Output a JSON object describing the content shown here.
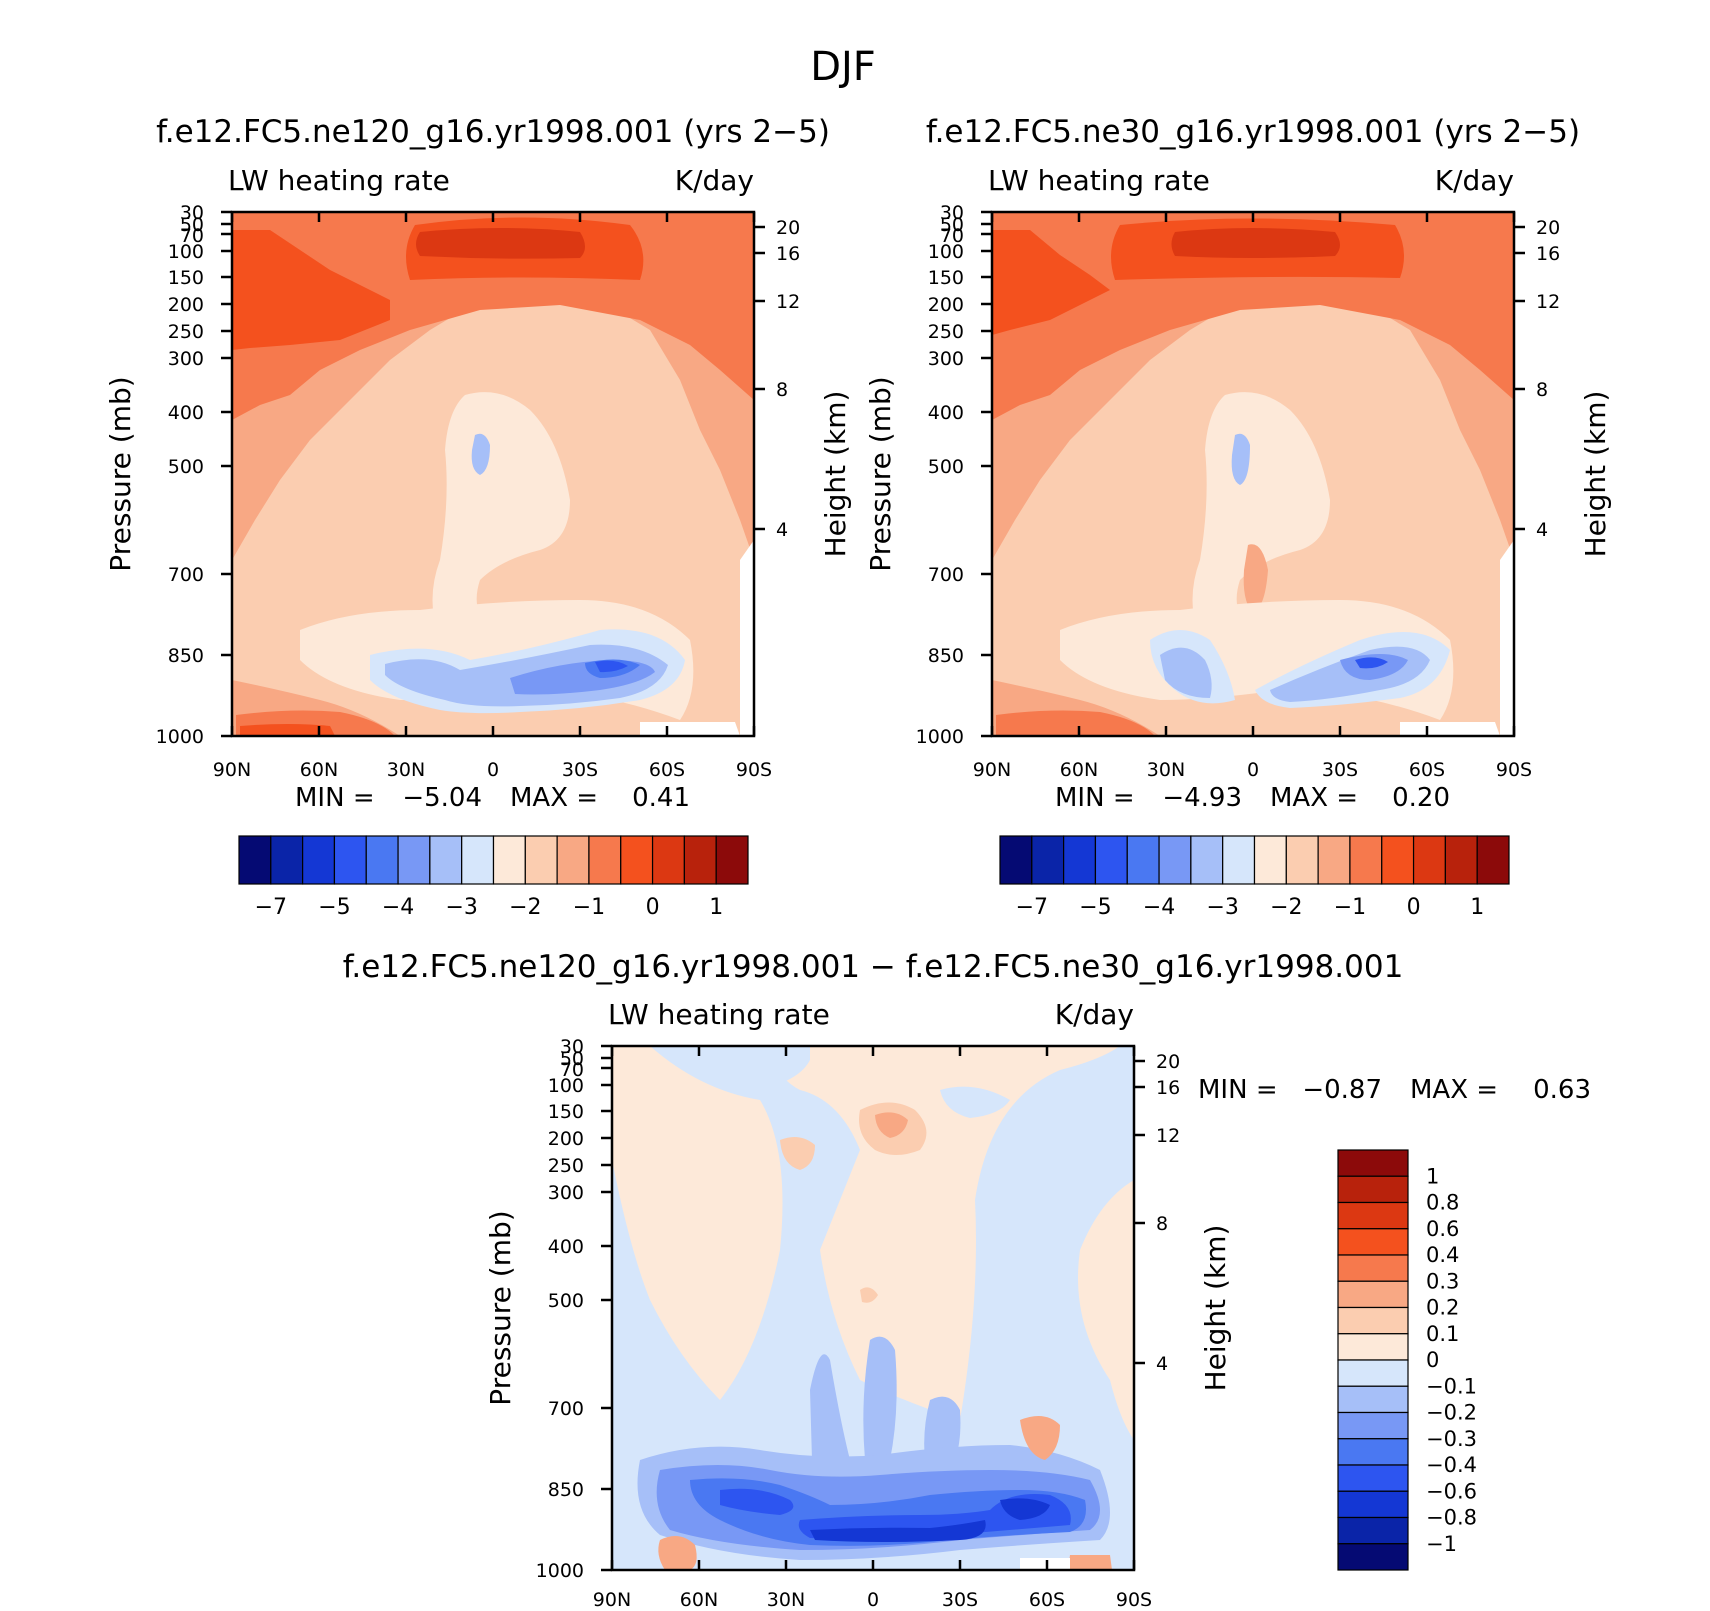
{
  "figure": {
    "title": "DJF"
  },
  "chart_data": [
    {
      "type": "heatmap",
      "title": "f.e12.FC5.ne120_g16.yr1998.001 (yrs 2-5)",
      "left_label": "LW heating rate",
      "right_label": "K/day",
      "xlabel": "",
      "ylabel": "Pressure (mb)",
      "ylabel_right": "Height (km)",
      "x_ticks": [
        "90N",
        "60N",
        "30N",
        "0",
        "30S",
        "60S",
        "90S"
      ],
      "y_ticks": [
        "30",
        "50",
        "70",
        "100",
        "150",
        "200",
        "250",
        "300",
        "400",
        "500",
        "700",
        "850",
        "1000"
      ],
      "y_ticks_right": [
        "20",
        "16",
        "12",
        "8",
        "4"
      ],
      "ylim": [
        1000,
        30
      ],
      "xlim": [
        90,
        -90
      ],
      "stats": {
        "min_label": "MIN =",
        "min": "-5.04",
        "max_label": "MAX =",
        "max": "0.41"
      },
      "colorbar": {
        "orientation": "horizontal",
        "levels": [
          -7.5,
          -7,
          -6.5,
          -6,
          -5.5,
          -5,
          -4.5,
          -4,
          -3.5,
          -3,
          -2.5,
          -2,
          -1.5,
          -1,
          -0.5,
          0,
          0.5,
          1,
          1.5
        ],
        "tick_labels": [
          "-7",
          "-5",
          "-4",
          "-3",
          "-2",
          "-1",
          "0",
          "1"
        ],
        "colors": [
          "#050a73",
          "#0a24a8",
          "#1437d4",
          "#2d55f0",
          "#4a78f2",
          "#7898f5",
          "#a6bff8",
          "#d6e6fb",
          "#fde9d9",
          "#fbcdb0",
          "#f8a884",
          "#f6794d",
          "#f4511e",
          "#dc3812",
          "#b8220c",
          "#8c0a0a"
        ]
      }
    },
    {
      "type": "heatmap",
      "title": "f.e12.FC5.ne30_g16.yr1998.001 (yrs 2-5)",
      "left_label": "LW heating rate",
      "right_label": "K/day",
      "xlabel": "",
      "ylabel": "Pressure (mb)",
      "ylabel_right": "Height (km)",
      "x_ticks": [
        "90N",
        "60N",
        "30N",
        "0",
        "30S",
        "60S",
        "90S"
      ],
      "y_ticks": [
        "30",
        "50",
        "70",
        "100",
        "150",
        "200",
        "250",
        "300",
        "400",
        "500",
        "700",
        "850",
        "1000"
      ],
      "y_ticks_right": [
        "20",
        "16",
        "12",
        "8",
        "4"
      ],
      "ylim": [
        1000,
        30
      ],
      "xlim": [
        90,
        -90
      ],
      "stats": {
        "min_label": "MIN =",
        "min": "-4.93",
        "max_label": "MAX =",
        "max": "0.20"
      },
      "colorbar": {
        "orientation": "horizontal",
        "tick_labels": [
          "-7",
          "-5",
          "-4",
          "-3",
          "-2",
          "-1",
          "0",
          "1"
        ],
        "colors": [
          "#050a73",
          "#0a24a8",
          "#1437d4",
          "#2d55f0",
          "#4a78f2",
          "#7898f5",
          "#a6bff8",
          "#d6e6fb",
          "#fde9d9",
          "#fbcdb0",
          "#f8a884",
          "#f6794d",
          "#f4511e",
          "#dc3812",
          "#b8220c",
          "#8c0a0a"
        ]
      }
    },
    {
      "type": "heatmap",
      "title": "f.e12.FC5.ne120_g16.yr1998.001 - f.e12.FC5.ne30_g16.yr1998.001",
      "left_label": "LW heating rate",
      "right_label": "K/day",
      "xlabel": "",
      "ylabel": "Pressure (mb)",
      "ylabel_right": "Height (km)",
      "x_ticks": [
        "90N",
        "60N",
        "30N",
        "0",
        "30S",
        "60S",
        "90S"
      ],
      "y_ticks": [
        "30",
        "50",
        "70",
        "100",
        "150",
        "200",
        "250",
        "300",
        "400",
        "500",
        "700",
        "850",
        "1000"
      ],
      "y_ticks_right": [
        "20",
        "16",
        "12",
        "8",
        "4"
      ],
      "ylim": [
        1000,
        30
      ],
      "xlim": [
        90,
        -90
      ],
      "stats": {
        "min_label": "MIN =",
        "min": "-0.87",
        "max_label": "MAX =",
        "max": "0.63"
      },
      "colorbar": {
        "orientation": "vertical",
        "tick_labels": [
          "1",
          "0.8",
          "0.6",
          "0.4",
          "0.3",
          "0.2",
          "0.1",
          "0",
          "-0.1",
          "-0.2",
          "-0.3",
          "-0.4",
          "-0.6",
          "-0.8",
          "-1"
        ],
        "colors": [
          "#8c0a0a",
          "#b8220c",
          "#dc3812",
          "#f4511e",
          "#f6794d",
          "#f8a884",
          "#fbcdb0",
          "#fde9d9",
          "#d6e6fb",
          "#a6bff8",
          "#7898f5",
          "#4a78f2",
          "#2d55f0",
          "#1437d4",
          "#0a24a8",
          "#050a73"
        ]
      }
    }
  ]
}
